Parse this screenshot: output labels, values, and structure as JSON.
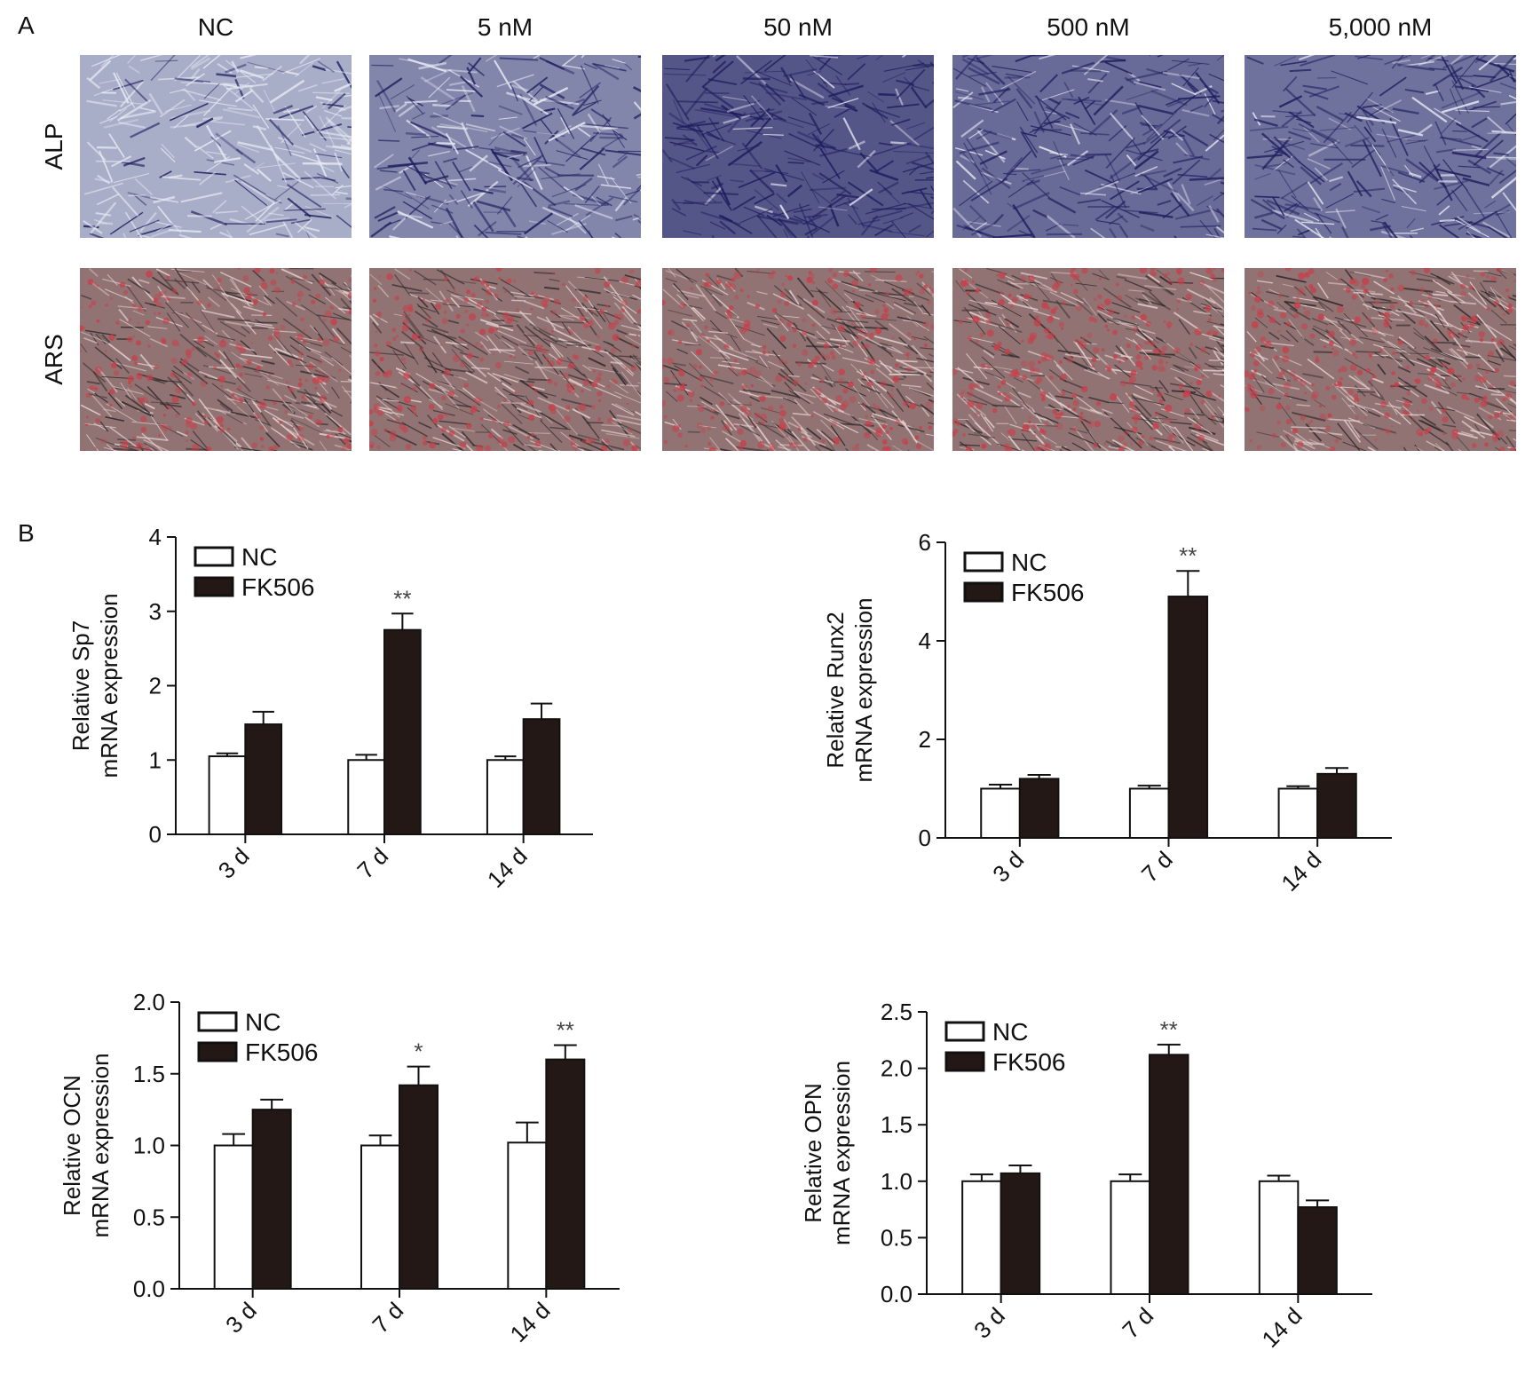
{
  "panel_a": {
    "label": "A",
    "columns": [
      "NC",
      "5 nM",
      "50 nM",
      "500 nM",
      "5,000 nM"
    ],
    "rows": [
      {
        "label": "ALP",
        "stain": "alp"
      },
      {
        "label": "ARS",
        "stain": "ars"
      }
    ],
    "stain_colors": {
      "alp_light": "#c9cfe0",
      "alp_dark": "#1d1c5e",
      "ars_light": "#d9a8a6",
      "ars_dark": "#3a3436",
      "ars_red": "#c8404a"
    },
    "alp_intensity": [
      0.25,
      0.55,
      0.9,
      0.75,
      0.7
    ],
    "ars_red_amount": [
      0.45,
      0.5,
      0.6,
      0.65,
      0.55
    ]
  },
  "panel_b": {
    "label": "B"
  },
  "chart_data": [
    {
      "type": "bar",
      "ylabel": "Relative Sp7 mRNA expression",
      "ylabel_lines": [
        "Relative Sp7",
        "mRNA expression"
      ],
      "categories": [
        "3 d",
        "7 d",
        "14 d"
      ],
      "ylim": [
        0,
        4
      ],
      "yticks": [
        0,
        1,
        2,
        3,
        4
      ],
      "ytick_labels": [
        "0",
        "1",
        "2",
        "3",
        "4"
      ],
      "legend_position": "top-left",
      "series": [
        {
          "name": "NC",
          "color": "#ffffff",
          "values": [
            1.05,
            1.0,
            1.0
          ],
          "errors": [
            0.04,
            0.07,
            0.05
          ]
        },
        {
          "name": "FK506",
          "color": "#231815",
          "values": [
            1.48,
            2.75,
            1.55
          ],
          "errors": [
            0.17,
            0.22,
            0.21
          ]
        }
      ],
      "annotations": [
        {
          "category": 1,
          "series": 1,
          "text": "**"
        }
      ]
    },
    {
      "type": "bar",
      "ylabel": "Relative Runx2 mRNA expression",
      "ylabel_lines": [
        "Relative Runx2",
        "mRNA expression"
      ],
      "categories": [
        "3 d",
        "7 d",
        "14 d"
      ],
      "ylim": [
        0,
        6
      ],
      "yticks": [
        0,
        2,
        4,
        6
      ],
      "ytick_labels": [
        "0",
        "2",
        "4",
        "6"
      ],
      "legend_position": "top-left",
      "series": [
        {
          "name": "NC",
          "color": "#ffffff",
          "values": [
            1.0,
            1.0,
            1.0
          ],
          "errors": [
            0.08,
            0.06,
            0.05
          ]
        },
        {
          "name": "FK506",
          "color": "#231815",
          "values": [
            1.2,
            4.9,
            1.3
          ],
          "errors": [
            0.08,
            0.52,
            0.12
          ]
        }
      ],
      "annotations": [
        {
          "category": 1,
          "series": 1,
          "text": "**"
        }
      ]
    },
    {
      "type": "bar",
      "ylabel": "Relative OCN mRNA expression",
      "ylabel_lines": [
        "Relative OCN",
        "mRNA expression"
      ],
      "categories": [
        "3 d",
        "7 d",
        "14 d"
      ],
      "ylim": [
        0,
        2.0
      ],
      "yticks": [
        0,
        0.5,
        1.0,
        1.5,
        2.0
      ],
      "ytick_labels": [
        "0.0",
        "0.5",
        "1.0",
        "1.5",
        "2.0"
      ],
      "legend_position": "top-left",
      "series": [
        {
          "name": "NC",
          "color": "#ffffff",
          "values": [
            1.0,
            1.0,
            1.02
          ],
          "errors": [
            0.08,
            0.07,
            0.14
          ]
        },
        {
          "name": "FK506",
          "color": "#231815",
          "values": [
            1.25,
            1.42,
            1.6
          ],
          "errors": [
            0.07,
            0.13,
            0.1
          ]
        }
      ],
      "annotations": [
        {
          "category": 1,
          "series": 1,
          "text": "*"
        },
        {
          "category": 2,
          "series": 1,
          "text": "**"
        }
      ]
    },
    {
      "type": "bar",
      "ylabel": "Relative OPN mRNA expression",
      "ylabel_lines": [
        "Relative OPN",
        "mRNA expression"
      ],
      "categories": [
        "3 d",
        "7 d",
        "14 d"
      ],
      "ylim": [
        0,
        2.5
      ],
      "yticks": [
        0,
        0.5,
        1.0,
        1.5,
        2.0,
        2.5
      ],
      "ytick_labels": [
        "0.0",
        "0.5",
        "1.0",
        "1.5",
        "2.0",
        "2.5"
      ],
      "legend_position": "top-left",
      "series": [
        {
          "name": "NC",
          "color": "#ffffff",
          "values": [
            1.0,
            1.0,
            1.0
          ],
          "errors": [
            0.06,
            0.06,
            0.05
          ]
        },
        {
          "name": "FK506",
          "color": "#231815",
          "values": [
            1.07,
            2.12,
            0.77
          ],
          "errors": [
            0.07,
            0.09,
            0.06
          ]
        }
      ],
      "annotations": [
        {
          "category": 1,
          "series": 1,
          "text": "**"
        }
      ]
    }
  ]
}
